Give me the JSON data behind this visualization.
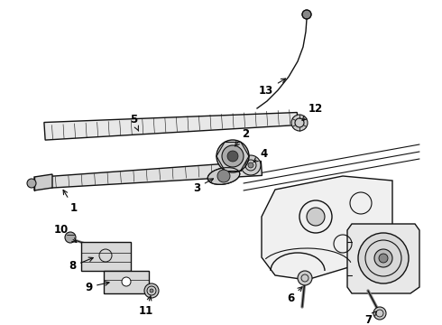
{
  "bg_color": "#ffffff",
  "line_color": "#111111",
  "label_color": "#000000",
  "label_fontsize": 8.5,
  "label_fontweight": "bold",
  "fig_width": 4.9,
  "fig_height": 3.6,
  "dpi": 100
}
